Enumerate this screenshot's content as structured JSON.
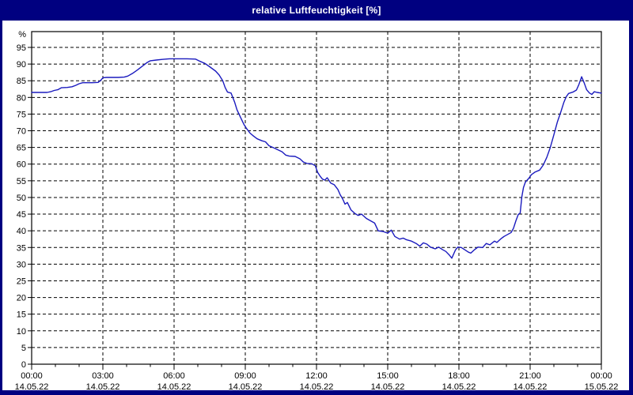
{
  "window": {
    "title": "relative Luftfeuchtigkeit [%]"
  },
  "colors": {
    "titlebar": "#000080",
    "window_border": "#000080",
    "chart_background": "#ffffff",
    "grid": "#000000",
    "axis": "#000000",
    "text": "#000000",
    "line": "#1a1abe"
  },
  "chart_data": {
    "type": "line",
    "title": "relative Luftfeuchtigkeit [%]",
    "ylabel": "%",
    "xlabel": "",
    "ylim": [
      0,
      100
    ],
    "xlim_hours": [
      0,
      24
    ],
    "grid": "dashed, horizontal every 5%, vertical every 3h",
    "legend_position": "none",
    "y_ticks": [
      0,
      5,
      10,
      15,
      20,
      25,
      30,
      35,
      40,
      45,
      50,
      55,
      60,
      65,
      70,
      75,
      80,
      85,
      90,
      95
    ],
    "y_unit_label": "%",
    "x_minor_tick_every_hours": 1,
    "x_ticks": [
      {
        "hour": 0,
        "time": "00:00",
        "date": "14.05.22"
      },
      {
        "hour": 3,
        "time": "03:00",
        "date": "14.05.22"
      },
      {
        "hour": 6,
        "time": "06:00",
        "date": "14.05.22"
      },
      {
        "hour": 9,
        "time": "09:00",
        "date": "14.05.22"
      },
      {
        "hour": 12,
        "time": "12:00",
        "date": "14.05.22"
      },
      {
        "hour": 15,
        "time": "15:00",
        "date": "14.05.22"
      },
      {
        "hour": 18,
        "time": "18:00",
        "date": "14.05.22"
      },
      {
        "hour": 21,
        "time": "21:00",
        "date": "14.05.22"
      },
      {
        "hour": 24,
        "time": "00:00",
        "date": "15.05.22"
      }
    ],
    "series": [
      {
        "name": "relative Luftfeuchtigkeit",
        "unit": "%",
        "color": "#1a1abe",
        "points": [
          [
            0.0,
            81.5
          ],
          [
            0.3,
            81.5
          ],
          [
            0.65,
            81.5
          ],
          [
            0.8,
            81.7
          ],
          [
            0.95,
            82.1
          ],
          [
            1.1,
            82.3
          ],
          [
            1.25,
            82.9
          ],
          [
            1.5,
            83.0
          ],
          [
            1.7,
            83.2
          ],
          [
            1.85,
            83.6
          ],
          [
            2.0,
            84.1
          ],
          [
            2.15,
            84.4
          ],
          [
            2.55,
            84.4
          ],
          [
            2.8,
            84.5
          ],
          [
            2.92,
            85.2
          ],
          [
            3.0,
            85.9
          ],
          [
            3.15,
            86.0
          ],
          [
            3.65,
            86.0
          ],
          [
            3.9,
            86.1
          ],
          [
            4.05,
            86.4
          ],
          [
            4.25,
            87.2
          ],
          [
            4.45,
            88.2
          ],
          [
            4.65,
            89.3
          ],
          [
            4.85,
            90.4
          ],
          [
            5.0,
            91.0
          ],
          [
            5.25,
            91.2
          ],
          [
            5.5,
            91.4
          ],
          [
            5.8,
            91.6
          ],
          [
            6.55,
            91.6
          ],
          [
            6.9,
            91.5
          ],
          [
            7.1,
            90.8
          ],
          [
            7.3,
            90.2
          ],
          [
            7.5,
            89.2
          ],
          [
            7.75,
            87.9
          ],
          [
            7.9,
            86.7
          ],
          [
            8.05,
            85.0
          ],
          [
            8.15,
            83.0
          ],
          [
            8.25,
            81.6
          ],
          [
            8.4,
            81.3
          ],
          [
            8.55,
            78.6
          ],
          [
            8.65,
            76.3
          ],
          [
            8.8,
            74.0
          ],
          [
            8.95,
            71.8
          ],
          [
            9.05,
            70.7
          ],
          [
            9.2,
            69.3
          ],
          [
            9.35,
            68.4
          ],
          [
            9.5,
            67.6
          ],
          [
            9.7,
            67.0
          ],
          [
            9.85,
            66.7
          ],
          [
            10.0,
            65.5
          ],
          [
            10.2,
            64.9
          ],
          [
            10.4,
            64.2
          ],
          [
            10.55,
            63.7
          ],
          [
            10.7,
            62.7
          ],
          [
            10.85,
            62.4
          ],
          [
            11.1,
            62.3
          ],
          [
            11.3,
            61.6
          ],
          [
            11.45,
            60.6
          ],
          [
            11.6,
            60.2
          ],
          [
            11.8,
            60.1
          ],
          [
            11.95,
            59.5
          ],
          [
            12.05,
            57.5
          ],
          [
            12.15,
            56.4
          ],
          [
            12.25,
            55.5
          ],
          [
            12.35,
            55.2
          ],
          [
            12.45,
            55.9
          ],
          [
            12.6,
            54.3
          ],
          [
            12.75,
            53.8
          ],
          [
            12.9,
            52.4
          ],
          [
            13.0,
            50.8
          ],
          [
            13.1,
            49.6
          ],
          [
            13.2,
            48.0
          ],
          [
            13.3,
            48.5
          ],
          [
            13.45,
            46.3
          ],
          [
            13.6,
            45.3
          ],
          [
            13.75,
            44.6
          ],
          [
            13.9,
            45.0
          ],
          [
            14.1,
            43.7
          ],
          [
            14.3,
            42.9
          ],
          [
            14.45,
            42.3
          ],
          [
            14.6,
            40.0
          ],
          [
            14.8,
            39.8
          ],
          [
            15.0,
            39.3
          ],
          [
            15.15,
            40.2
          ],
          [
            15.3,
            38.3
          ],
          [
            15.5,
            37.5
          ],
          [
            15.65,
            37.8
          ],
          [
            15.8,
            37.3
          ],
          [
            16.0,
            36.9
          ],
          [
            16.2,
            36.2
          ],
          [
            16.35,
            35.4
          ],
          [
            16.5,
            36.4
          ],
          [
            16.65,
            36.0
          ],
          [
            16.8,
            35.1
          ],
          [
            17.0,
            34.6
          ],
          [
            17.15,
            35.1
          ],
          [
            17.3,
            34.4
          ],
          [
            17.45,
            33.8
          ],
          [
            17.6,
            32.7
          ],
          [
            17.7,
            31.8
          ],
          [
            17.85,
            34.2
          ],
          [
            17.95,
            35.1
          ],
          [
            18.1,
            35.0
          ],
          [
            18.25,
            34.3
          ],
          [
            18.4,
            33.6
          ],
          [
            18.5,
            33.3
          ],
          [
            18.65,
            34.3
          ],
          [
            18.8,
            35.1
          ],
          [
            19.0,
            35.0
          ],
          [
            19.15,
            36.2
          ],
          [
            19.3,
            35.8
          ],
          [
            19.5,
            36.9
          ],
          [
            19.6,
            36.5
          ],
          [
            19.75,
            37.5
          ],
          [
            19.9,
            38.3
          ],
          [
            20.05,
            38.9
          ],
          [
            20.2,
            39.5
          ],
          [
            20.3,
            40.8
          ],
          [
            20.4,
            43.0
          ],
          [
            20.5,
            44.9
          ],
          [
            20.58,
            45.3
          ],
          [
            20.65,
            50.2
          ],
          [
            20.72,
            53.0
          ],
          [
            20.8,
            54.6
          ],
          [
            20.95,
            55.8
          ],
          [
            21.05,
            56.8
          ],
          [
            21.2,
            57.6
          ],
          [
            21.4,
            58.2
          ],
          [
            21.55,
            59.7
          ],
          [
            21.7,
            62.0
          ],
          [
            21.85,
            65.0
          ],
          [
            22.0,
            68.8
          ],
          [
            22.15,
            72.7
          ],
          [
            22.3,
            75.8
          ],
          [
            22.42,
            78.5
          ],
          [
            22.52,
            80.2
          ],
          [
            22.62,
            81.2
          ],
          [
            22.8,
            81.6
          ],
          [
            22.95,
            82.2
          ],
          [
            23.05,
            83.8
          ],
          [
            23.17,
            86.2
          ],
          [
            23.28,
            84.3
          ],
          [
            23.38,
            82.3
          ],
          [
            23.5,
            81.3
          ],
          [
            23.6,
            80.9
          ],
          [
            23.7,
            81.7
          ],
          [
            23.82,
            81.5
          ],
          [
            24.0,
            81.3
          ]
        ]
      }
    ]
  }
}
